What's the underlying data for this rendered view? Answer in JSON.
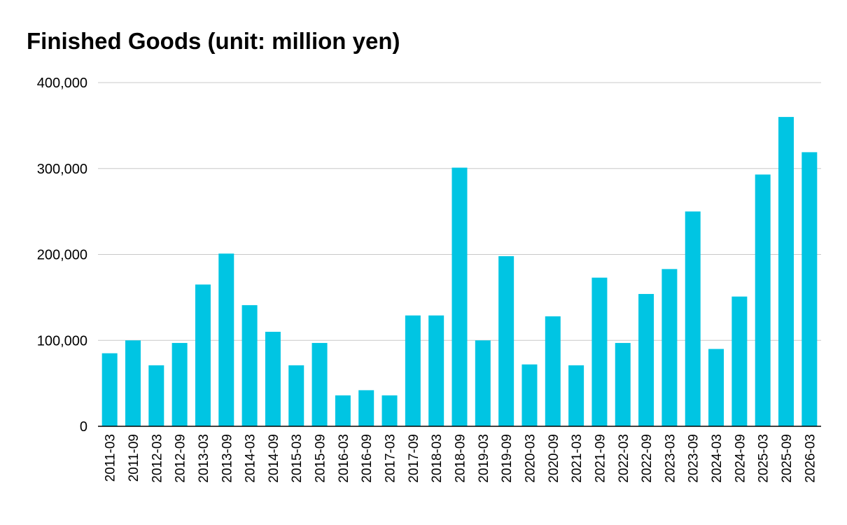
{
  "chart_data": {
    "type": "bar",
    "title": "Finished Goods (unit: million yen)",
    "xlabel": "",
    "ylabel": "",
    "ylim": [
      0,
      400000
    ],
    "yticks": [
      "0",
      "100,000",
      "200,000",
      "300,000",
      "400,000"
    ],
    "ytick_values": [
      0,
      100000,
      200000,
      300000,
      400000
    ],
    "grid": true,
    "legend": "none",
    "bar_color": "#00c5e3",
    "categories": [
      "2011-03",
      "2011-09",
      "2012-03",
      "2012-09",
      "2013-03",
      "2013-09",
      "2014-03",
      "2014-09",
      "2015-03",
      "2015-09",
      "2016-03",
      "2016-09",
      "2017-03",
      "2017-09",
      "2018-03",
      "2018-09",
      "2019-03",
      "2019-09",
      "2020-03",
      "2020-09",
      "2021-03",
      "2021-09",
      "2022-03",
      "2022-09",
      "2023-03",
      "2023-09",
      "2024-03",
      "2024-09",
      "2025-03",
      "2025-09",
      "2026-03"
    ],
    "values": [
      85000,
      100000,
      71000,
      97000,
      165000,
      201000,
      141000,
      110000,
      71000,
      97000,
      36000,
      42000,
      36000,
      129000,
      129000,
      301000,
      100000,
      198000,
      72000,
      128000,
      71000,
      173000,
      97000,
      154000,
      183000,
      250000,
      90000,
      151000,
      293000,
      360000,
      319000
    ]
  }
}
